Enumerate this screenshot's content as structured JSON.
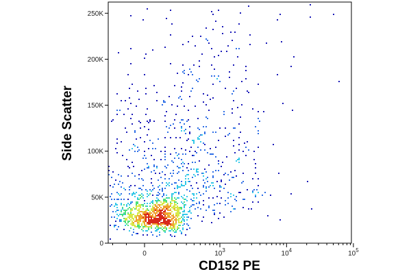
{
  "chart_data": {
    "type": "scatter",
    "plot_style": "flow cytometry density dot plot (pseudocolor)",
    "xlabel": "CD152 PE",
    "ylabel": "Side Scatter",
    "x_scale": "biexponential (linear near 0, log above ~10^2)",
    "xlim": [
      -300,
      200000
    ],
    "ylim": [
      0,
      262144
    ],
    "x_ticks": [
      {
        "value": 0,
        "label": "0"
      },
      {
        "value": 1000,
        "label": "10",
        "exp": "3"
      },
      {
        "value": 10000,
        "label": "10",
        "exp": "4"
      },
      {
        "value": 100000,
        "label": "10",
        "exp": "5"
      }
    ],
    "y_ticks": [
      {
        "value": 0,
        "label": "0"
      },
      {
        "value": 50000,
        "label": "50K"
      },
      {
        "value": 100000,
        "label": "100K"
      },
      {
        "value": 150000,
        "label": "150K"
      },
      {
        "value": 200000,
        "label": "200K"
      },
      {
        "value": 250000,
        "label": "250K"
      }
    ],
    "density_colors": [
      "#1a1ab8",
      "#2e6ee6",
      "#33c8e8",
      "#4ee07a",
      "#d8e84a",
      "#f0a030",
      "#d8281c"
    ],
    "populations": [
      {
        "name_hint": "main",
        "x_center": 60,
        "y_center": 20000,
        "share": 0.55,
        "color_peak": "red"
      },
      {
        "name_hint": "side-scatter spread",
        "x_center": 80,
        "y_center": 120000,
        "share": 0.35,
        "color_peak": "blue"
      },
      {
        "name_hint": "CD152 positive tail",
        "x_center": 3000,
        "y_center": 140000,
        "share": 0.1,
        "color_peak": "blue"
      }
    ],
    "grid": false,
    "legend": "none"
  }
}
